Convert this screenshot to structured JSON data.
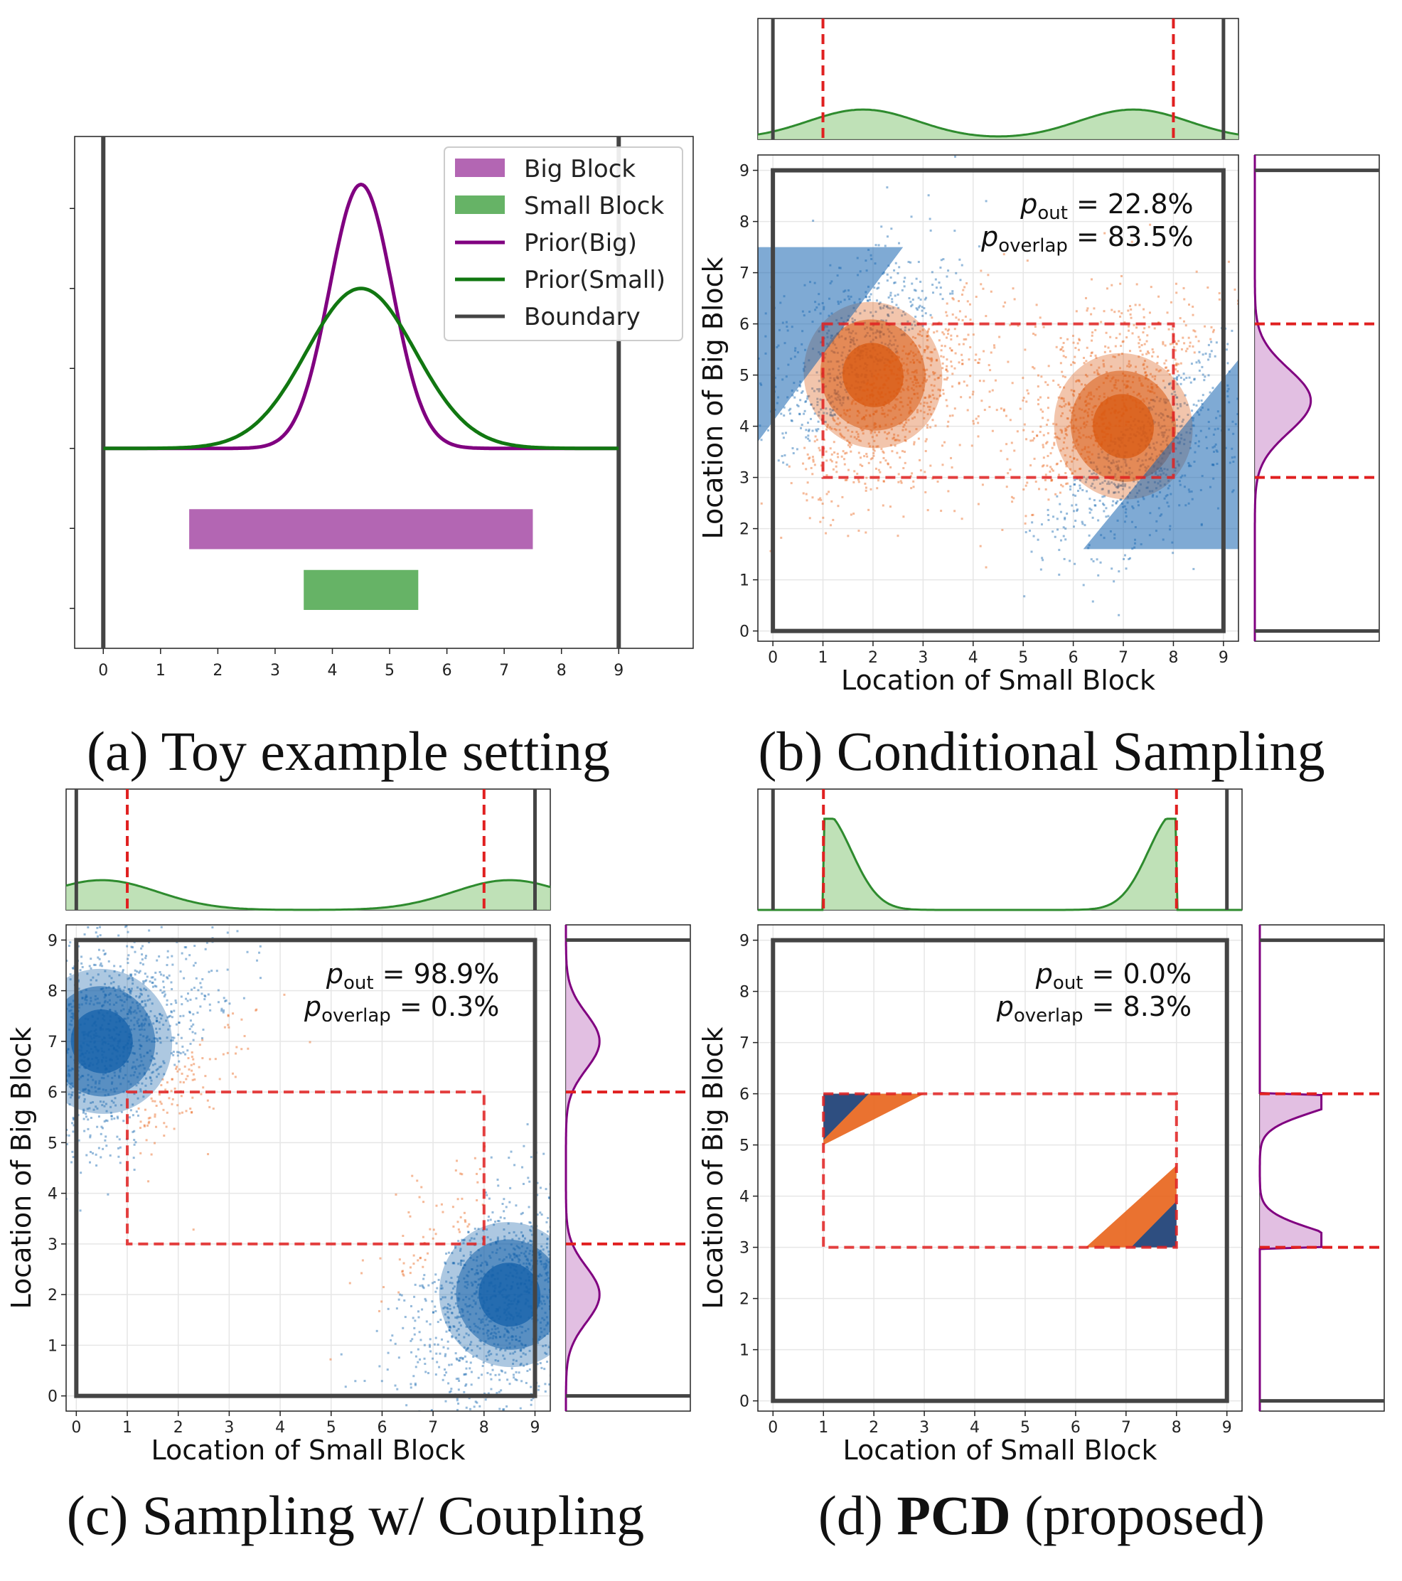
{
  "colors": {
    "big": "#b366b3",
    "small": "#66b366",
    "prior_big": "#800080",
    "prior_small": "#117711",
    "boundary": "#444444",
    "red": "#e02020",
    "blue": "#1565b0",
    "orange": "#e8631a",
    "small_fill": "#b4dcaa",
    "big_fill": "#ddb4dd"
  },
  "chart_data": [
    {
      "panel": "a",
      "type": "line",
      "caption": "(a) Toy example setting",
      "xticks": [
        "0",
        "1",
        "2",
        "3",
        "4",
        "5",
        "6",
        "7",
        "8",
        "9"
      ],
      "xlim": [
        -0.5,
        10.3
      ],
      "legend": {
        "position": "top-right",
        "items": [
          {
            "label": "Big Block",
            "kind": "patch",
            "color": "#b366b3"
          },
          {
            "label": "Small Block",
            "kind": "patch",
            "color": "#66b366"
          },
          {
            "label": "Prior(Big)",
            "kind": "line",
            "color": "#800080"
          },
          {
            "label": "Prior(Small)",
            "kind": "line",
            "color": "#117711"
          },
          {
            "label": "Boundary",
            "kind": "line",
            "color": "#444444"
          }
        ]
      },
      "prior_big": {
        "mean": 4.5,
        "sd": 0.55,
        "peak": 1.65
      },
      "prior_small": {
        "mean": 4.5,
        "sd": 0.95,
        "peak": 1.0
      },
      "ylim": [
        -1.25,
        1.95
      ],
      "baseline": 0,
      "boundaries": [
        0,
        9
      ],
      "big_block": {
        "x0": 1.5,
        "x1": 7.5,
        "y": -0.38,
        "h": 0.25
      },
      "small_block": {
        "x0": 3.5,
        "x1": 5.5,
        "y": -0.76,
        "h": 0.25
      },
      "yticks": [
        -1.0,
        -0.5,
        0,
        0.5,
        1.0,
        1.5
      ]
    },
    {
      "panel": "b",
      "type": "scatter",
      "caption": "(b) Conditional Sampling",
      "xlabel": "Location of Small Block",
      "ylabel": "Location of Big Block",
      "ticks": [
        "0",
        "1",
        "2",
        "3",
        "4",
        "5",
        "6",
        "7",
        "8",
        "9"
      ],
      "xlim": [
        -0.3,
        9.3
      ],
      "ylim": [
        -0.2,
        9.3
      ],
      "annotation": {
        "p_out": "= 22.8%",
        "p_overlap": "= 83.5%"
      },
      "clusters": [
        {
          "cx": 2,
          "cy": 5
        },
        {
          "cx": 7,
          "cy": 4
        }
      ],
      "cluster_sd": [
        1.25,
        0.95,
        0.55
      ],
      "overlap_rule": "abs(x-y) <= 3 is orange (overlap), else blue",
      "rect": [
        1,
        8,
        3,
        6
      ],
      "top_marginal": {
        "kind": "bimodal",
        "modes": [
          1.8,
          7.2
        ],
        "vlines": [
          1,
          8
        ]
      },
      "right_marginal": {
        "kind": "single",
        "mode": 4.5,
        "vlines": [
          3,
          6
        ]
      }
    },
    {
      "panel": "c",
      "type": "scatter",
      "caption": "(c) Sampling w/ Coupling",
      "xlabel": "Location of Small Block",
      "ylabel": "Location of Big Block",
      "ticks": [
        "0",
        "1",
        "2",
        "3",
        "4",
        "5",
        "6",
        "7",
        "8",
        "9"
      ],
      "xlim": [
        -0.2,
        9.3
      ],
      "ylim": [
        -0.3,
        9.3
      ],
      "annotation": {
        "p_out": "= 98.9%",
        "p_overlap": "= 0.3%"
      },
      "clusters": [
        {
          "cx": 0.5,
          "cy": 7
        },
        {
          "cx": 8.5,
          "cy": 2
        }
      ],
      "cluster_sd": [
        1.25,
        0.95,
        0.55
      ],
      "rect": [
        1,
        8,
        3,
        6
      ],
      "top_marginal": {
        "kind": "bimodal",
        "modes": [
          0.5,
          8.5
        ],
        "vlines": [
          1,
          8
        ]
      },
      "right_marginal": {
        "kind": "bimodal",
        "modes": [
          2,
          7
        ],
        "vlines": [
          3,
          6
        ]
      }
    },
    {
      "panel": "d",
      "type": "scatter",
      "caption_prefix": "(d) ",
      "caption_bold": "PCD",
      "caption_suffix": " (proposed)",
      "xlabel": "Location of Small Block",
      "ylabel": "Location of Big Block",
      "ticks": [
        "0",
        "1",
        "2",
        "3",
        "4",
        "5",
        "6",
        "7",
        "8",
        "9"
      ],
      "xlim": [
        -0.3,
        9.3
      ],
      "ylim": [
        -0.2,
        9.3
      ],
      "annotation": {
        "p_out": "= 0.0%",
        "p_overlap": "= 8.3%"
      },
      "triangles": [
        {
          "pts": [
            [
              1,
              6
            ],
            [
              1,
              5
            ],
            [
              3,
              6
            ]
          ],
          "color": "#e8631a"
        },
        {
          "pts": [
            [
              1,
              6
            ],
            [
              1,
              5.1
            ],
            [
              1.9,
              6
            ]
          ],
          "color": "#1a4a8a"
        },
        {
          "pts": [
            [
              8,
              3
            ],
            [
              8,
              4.6
            ],
            [
              6.2,
              3
            ]
          ],
          "color": "#e8631a"
        },
        {
          "pts": [
            [
              8,
              3
            ],
            [
              8,
              3.9
            ],
            [
              7.1,
              3
            ]
          ],
          "color": "#1a4a8a"
        }
      ],
      "rect": [
        1,
        8,
        3,
        6
      ],
      "top_marginal": {
        "kind": "edges",
        "vlines": [
          1,
          8
        ]
      },
      "right_marginal": {
        "kind": "edges",
        "vlines": [
          3,
          6
        ]
      }
    }
  ],
  "text": {
    "legend_big": "Big Block",
    "legend_small": "Small Block",
    "legend_prior_big": "Prior(Big)",
    "legend_prior_small": "Prior(Small)",
    "legend_boundary": "Boundary",
    "p": "p",
    "out": "out",
    "overlap": "overlap"
  }
}
